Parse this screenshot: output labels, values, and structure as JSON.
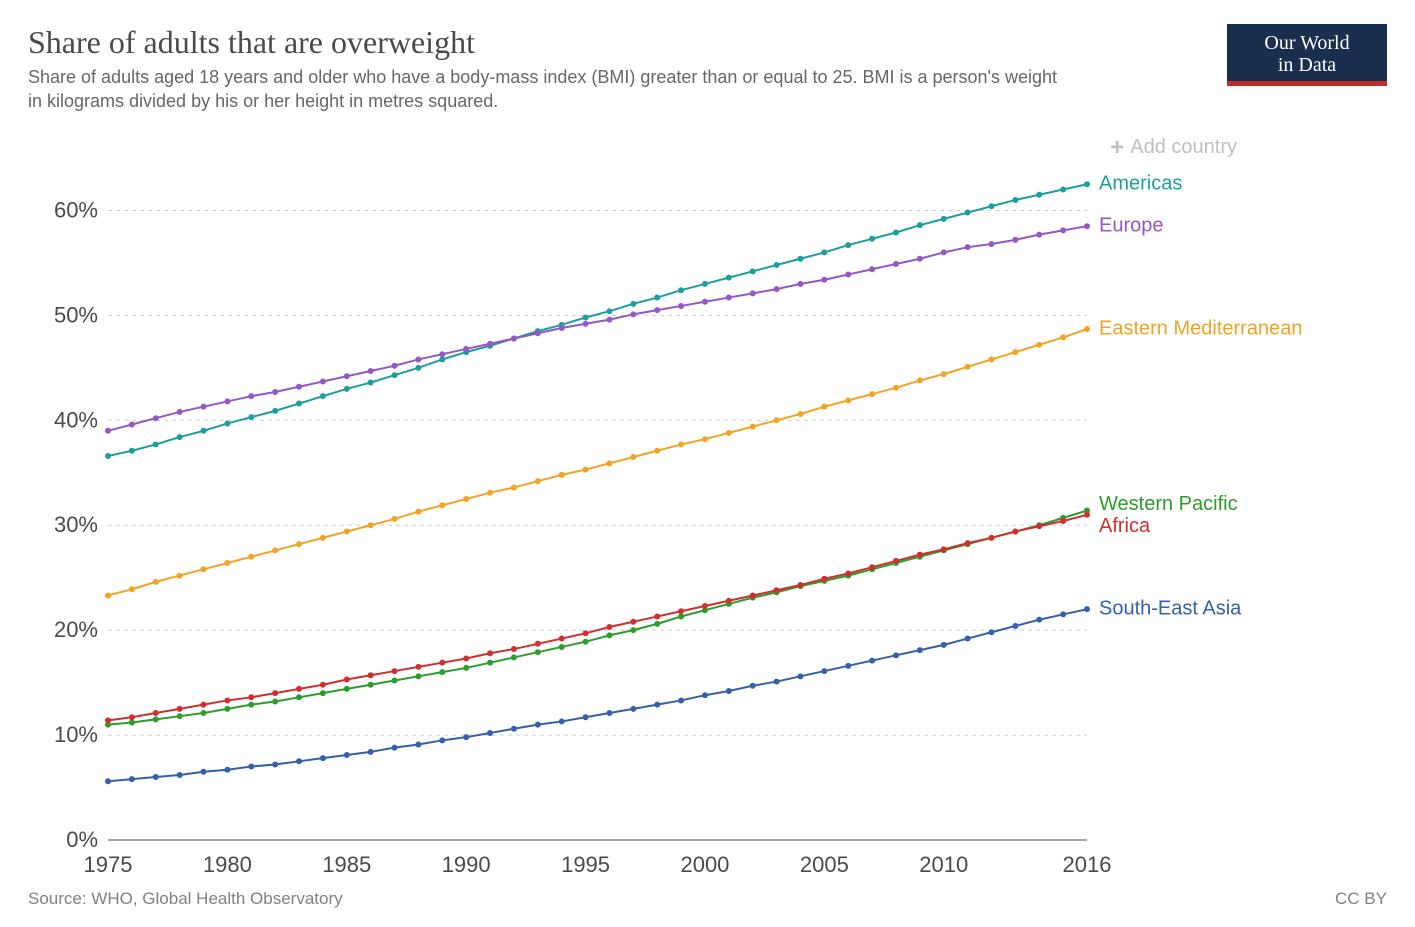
{
  "header": {
    "title": "Share of adults that are overweight",
    "subtitle": "Share of adults aged 18 years and older who have a body-mass index (BMI) greater than or equal to 25. BMI is a person's weight in kilograms divided by his or her height in metres squared.",
    "logo_line1": "Our World",
    "logo_line2": "in Data"
  },
  "controls": {
    "add_country_label": "Add country"
  },
  "chart": {
    "type": "line",
    "x": {
      "domain": [
        1975,
        2016
      ],
      "ticks": [
        1975,
        1980,
        1985,
        1990,
        1995,
        2000,
        2005,
        2010,
        2016
      ]
    },
    "y": {
      "domain": [
        0,
        65
      ],
      "ticks": [
        0,
        10,
        20,
        30,
        40,
        50,
        60
      ],
      "tick_suffix": "%"
    },
    "grid_color": "#cfcfcf",
    "zero_line_color": "#888888",
    "background_color": "#ffffff",
    "marker_radius": 3,
    "line_width": 2,
    "label_fontsize": 20,
    "tick_fontsize": 22,
    "years": [
      1975,
      1976,
      1977,
      1978,
      1979,
      1980,
      1981,
      1982,
      1983,
      1984,
      1985,
      1986,
      1987,
      1988,
      1989,
      1990,
      1991,
      1992,
      1993,
      1994,
      1995,
      1996,
      1997,
      1998,
      1999,
      2000,
      2001,
      2002,
      2003,
      2004,
      2005,
      2006,
      2007,
      2008,
      2009,
      2010,
      2011,
      2012,
      2013,
      2014,
      2015,
      2016
    ],
    "series": [
      {
        "name": "Americas",
        "label": "Americas",
        "color": "#1c9e9d",
        "values": [
          36.6,
          37.1,
          37.7,
          38.4,
          39.0,
          39.7,
          40.3,
          40.9,
          41.6,
          42.3,
          43.0,
          43.6,
          44.3,
          45.0,
          45.8,
          46.5,
          47.1,
          47.8,
          48.5,
          49.1,
          49.8,
          50.4,
          51.1,
          51.7,
          52.4,
          53.0,
          53.6,
          54.2,
          54.8,
          55.4,
          56.0,
          56.7,
          57.3,
          57.9,
          58.6,
          59.2,
          59.8,
          60.4,
          61.0,
          61.5,
          62.0,
          62.5
        ]
      },
      {
        "name": "Europe",
        "label": "Europe",
        "color": "#9457c4",
        "values": [
          39.0,
          39.6,
          40.2,
          40.8,
          41.3,
          41.8,
          42.3,
          42.7,
          43.2,
          43.7,
          44.2,
          44.7,
          45.2,
          45.8,
          46.3,
          46.8,
          47.3,
          47.8,
          48.3,
          48.8,
          49.2,
          49.6,
          50.1,
          50.5,
          50.9,
          51.3,
          51.7,
          52.1,
          52.5,
          53.0,
          53.4,
          53.9,
          54.4,
          54.9,
          55.4,
          56.0,
          56.5,
          56.8,
          57.2,
          57.7,
          58.1,
          58.5
        ]
      },
      {
        "name": "Eastern Mediterranean",
        "label": "Eastern Mediterranean",
        "color": "#f1a324",
        "values": [
          23.3,
          23.9,
          24.6,
          25.2,
          25.8,
          26.4,
          27.0,
          27.6,
          28.2,
          28.8,
          29.4,
          30.0,
          30.6,
          31.3,
          31.9,
          32.5,
          33.1,
          33.6,
          34.2,
          34.8,
          35.3,
          35.9,
          36.5,
          37.1,
          37.7,
          38.2,
          38.8,
          39.4,
          40.0,
          40.6,
          41.3,
          41.9,
          42.5,
          43.1,
          43.8,
          44.4,
          45.1,
          45.8,
          46.5,
          47.2,
          47.9,
          48.7
        ]
      },
      {
        "name": "Western Pacific",
        "label": "Western Pacific",
        "color": "#2b9d2b",
        "values": [
          11.0,
          11.2,
          11.5,
          11.8,
          12.1,
          12.5,
          12.9,
          13.2,
          13.6,
          14.0,
          14.4,
          14.8,
          15.2,
          15.6,
          16.0,
          16.4,
          16.9,
          17.4,
          17.9,
          18.4,
          18.9,
          19.5,
          20.0,
          20.6,
          21.3,
          21.9,
          22.5,
          23.1,
          23.6,
          24.2,
          24.7,
          25.2,
          25.8,
          26.4,
          27.0,
          27.6,
          28.2,
          28.8,
          29.4,
          30.0,
          30.7,
          31.4
        ]
      },
      {
        "name": "Africa",
        "label": "Africa",
        "color": "#d12f2f",
        "values": [
          11.4,
          11.7,
          12.1,
          12.5,
          12.9,
          13.3,
          13.6,
          14.0,
          14.4,
          14.8,
          15.3,
          15.7,
          16.1,
          16.5,
          16.9,
          17.3,
          17.8,
          18.2,
          18.7,
          19.2,
          19.7,
          20.3,
          20.8,
          21.3,
          21.8,
          22.3,
          22.8,
          23.3,
          23.8,
          24.3,
          24.9,
          25.4,
          26.0,
          26.6,
          27.2,
          27.7,
          28.3,
          28.8,
          29.4,
          29.9,
          30.4,
          31.0
        ]
      },
      {
        "name": "South-East Asia",
        "label": "South-East Asia",
        "color": "#3360a9",
        "values": [
          5.6,
          5.8,
          6.0,
          6.2,
          6.5,
          6.7,
          7.0,
          7.2,
          7.5,
          7.8,
          8.1,
          8.4,
          8.8,
          9.1,
          9.5,
          9.8,
          10.2,
          10.6,
          11.0,
          11.3,
          11.7,
          12.1,
          12.5,
          12.9,
          13.3,
          13.8,
          14.2,
          14.7,
          15.1,
          15.6,
          16.1,
          16.6,
          17.1,
          17.6,
          18.1,
          18.6,
          19.2,
          19.8,
          20.4,
          21.0,
          21.5,
          22.0
        ]
      }
    ],
    "label_y_offsets": {
      "Americas": 0,
      "Europe": 0,
      "Eastern Mediterranean": 0,
      "Western Pacific": -6,
      "Africa": 12,
      "South-East Asia": 0
    }
  },
  "footer": {
    "source": "Source: WHO, Global Health Observatory",
    "license": "CC BY"
  }
}
